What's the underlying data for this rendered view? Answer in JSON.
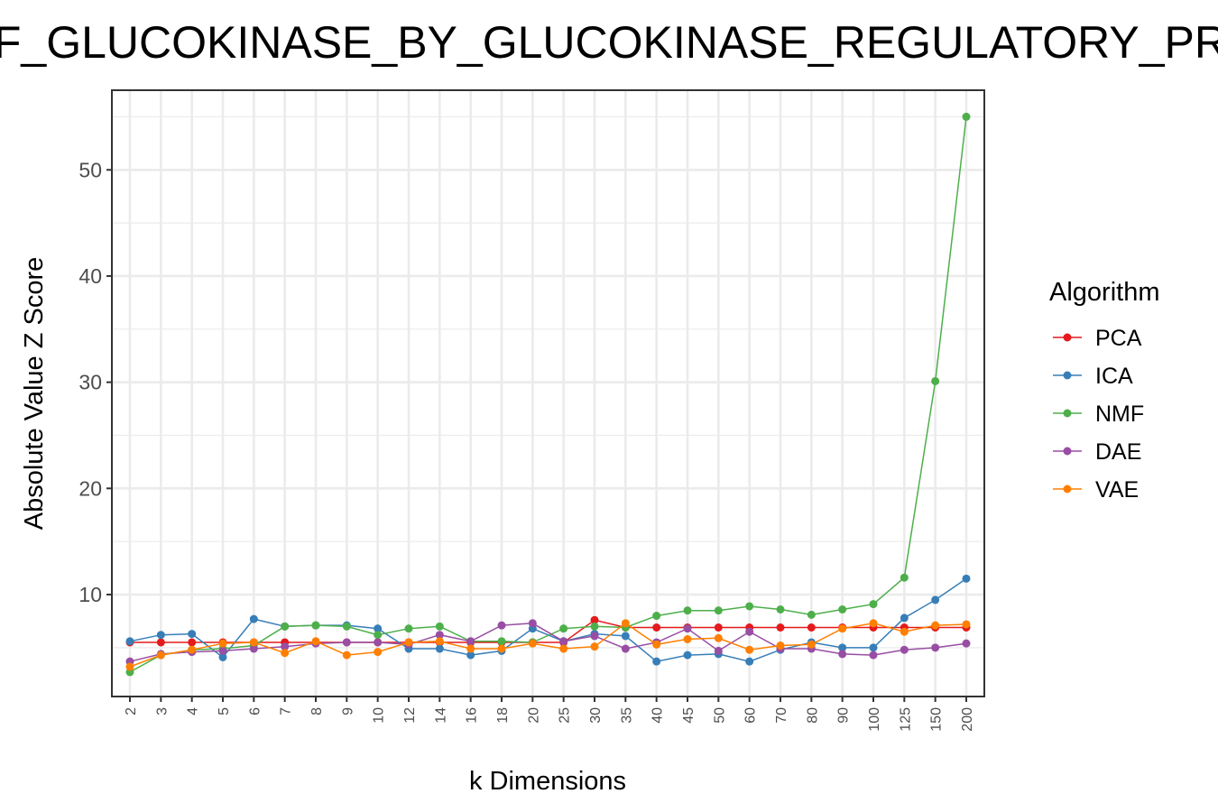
{
  "chart_data": {
    "type": "line",
    "title": "ION_OF_GLUCOKINASE_BY_GLUCOKINASE_REGULATORY_PROTEIN",
    "xlabel": "k Dimensions",
    "ylabel": "Absolute Value Z Score",
    "categories": [
      "2",
      "3",
      "4",
      "5",
      "6",
      "7",
      "8",
      "9",
      "10",
      "12",
      "14",
      "16",
      "18",
      "20",
      "25",
      "30",
      "35",
      "40",
      "45",
      "50",
      "60",
      "70",
      "80",
      "90",
      "100",
      "125",
      "150",
      "200"
    ],
    "yticks": [
      10,
      20,
      30,
      40,
      50
    ],
    "ylim": [
      0.4,
      57.5
    ],
    "grid": true,
    "legend": {
      "title": "Algorithm",
      "position": "right"
    },
    "series": [
      {
        "name": "PCA",
        "color": "#e41a1c",
        "values": [
          5.5,
          5.5,
          5.5,
          5.5,
          5.5,
          5.5,
          5.5,
          5.5,
          5.5,
          5.5,
          5.5,
          5.5,
          5.5,
          5.5,
          5.5,
          7.6,
          6.9,
          6.9,
          6.9,
          6.9,
          6.9,
          6.9,
          6.9,
          6.9,
          6.9,
          6.9,
          6.9,
          6.9
        ]
      },
      {
        "name": "ICA",
        "color": "#377eb8",
        "values": [
          5.6,
          6.2,
          6.3,
          4.1,
          7.7,
          7.0,
          7.1,
          7.1,
          6.8,
          4.9,
          4.9,
          4.3,
          4.7,
          6.8,
          5.6,
          6.3,
          6.1,
          3.7,
          4.3,
          4.4,
          3.7,
          4.8,
          5.5,
          5.0,
          5.0,
          7.8,
          9.5,
          11.5
        ]
      },
      {
        "name": "NMF",
        "color": "#4daf4a",
        "values": [
          2.7,
          4.3,
          4.8,
          4.9,
          5.2,
          7.0,
          7.1,
          7.0,
          6.2,
          6.8,
          7.0,
          5.6,
          5.6,
          5.5,
          6.8,
          7.0,
          6.9,
          8.0,
          8.5,
          8.5,
          8.9,
          8.6,
          8.1,
          8.6,
          9.1,
          11.6,
          30.1,
          55.0
        ]
      },
      {
        "name": "DAE",
        "color": "#984ea3",
        "values": [
          3.7,
          4.4,
          4.6,
          4.7,
          4.9,
          5.1,
          5.4,
          5.5,
          5.5,
          5.3,
          6.2,
          5.6,
          7.1,
          7.3,
          5.6,
          6.1,
          4.9,
          5.5,
          6.8,
          4.7,
          6.5,
          4.9,
          4.9,
          4.4,
          4.3,
          4.8,
          5.0,
          5.4
        ]
      },
      {
        "name": "VAE",
        "color": "#ff7f00",
        "values": [
          3.2,
          4.3,
          4.8,
          5.4,
          5.5,
          4.5,
          5.6,
          4.3,
          4.6,
          5.5,
          5.6,
          4.9,
          4.9,
          5.4,
          4.9,
          5.1,
          7.3,
          5.3,
          5.8,
          5.9,
          4.8,
          5.2,
          5.3,
          6.8,
          7.3,
          6.5,
          7.1,
          7.2
        ]
      }
    ]
  }
}
